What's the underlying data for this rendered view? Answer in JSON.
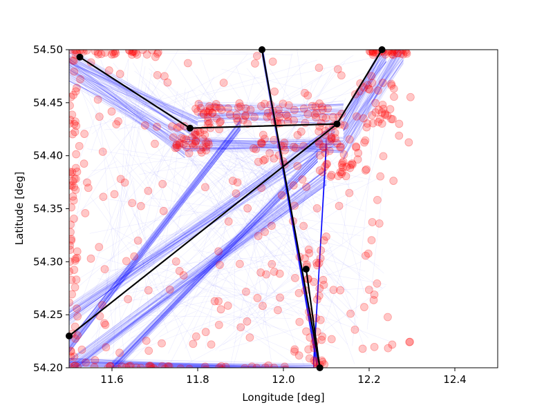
{
  "chart_data": {
    "type": "scatter",
    "title": "",
    "xlabel": "Longitude [deg]",
    "ylabel": "Latitude [deg]",
    "xlim": [
      11.5,
      12.5
    ],
    "ylim": [
      54.2,
      54.5
    ],
    "xticks": [
      "11.6",
      "11.8",
      "12.0",
      "12.2",
      "12.4"
    ],
    "xtick_values": [
      11.6,
      11.8,
      12.0,
      12.2,
      12.4
    ],
    "yticks": [
      "54.20",
      "54.25",
      "54.30",
      "54.35",
      "54.40",
      "54.45",
      "54.50"
    ],
    "ytick_values": [
      54.2,
      54.25,
      54.3,
      54.35,
      54.4,
      54.45,
      54.5
    ],
    "grid": false,
    "legend": "none",
    "colors": {
      "tracks": "#0000ff",
      "points": "#ff0000",
      "route": "#000000"
    },
    "track_corridors": [
      {
        "from": [
          11.5,
          54.49
        ],
        "to": [
          11.8,
          54.425
        ],
        "width": 0.012
      },
      {
        "from": [
          11.5,
          54.48
        ],
        "to": [
          11.77,
          54.41
        ],
        "width": 0.012
      },
      {
        "from": [
          11.77,
          54.41
        ],
        "to": [
          12.14,
          54.41
        ],
        "width": 0.008
      },
      {
        "from": [
          11.8,
          54.44
        ],
        "to": [
          12.14,
          54.44
        ],
        "width": 0.012
      },
      {
        "from": [
          12.14,
          54.43
        ],
        "to": [
          12.24,
          54.5
        ],
        "width": 0.012
      },
      {
        "from": [
          12.14,
          54.41
        ],
        "to": [
          12.28,
          54.5
        ],
        "width": 0.014
      },
      {
        "from": [
          11.95,
          54.5
        ],
        "to": [
          12.08,
          54.2
        ],
        "width": 0.006
      },
      {
        "from": [
          12.1,
          54.41
        ],
        "to": [
          12.07,
          54.2
        ],
        "width": 0.008
      },
      {
        "from": [
          11.5,
          54.25
        ],
        "to": [
          12.12,
          54.42
        ],
        "width": 0.01
      },
      {
        "from": [
          11.5,
          54.2
        ],
        "to": [
          12.1,
          54.38
        ],
        "width": 0.008
      },
      {
        "from": [
          11.5,
          54.22
        ],
        "to": [
          11.9,
          54.43
        ],
        "width": 0.006
      },
      {
        "from": [
          11.6,
          54.2
        ],
        "to": [
          12.08,
          54.4
        ],
        "width": 0.006
      },
      {
        "from": [
          11.5,
          54.205
        ],
        "to": [
          12.08,
          54.2
        ],
        "width": 0.004
      }
    ],
    "point_clusters": [
      {
        "x": [
          11.5,
          11.52
        ],
        "y": [
          54.2,
          54.5
        ],
        "n": 60
      },
      {
        "x": [
          11.5,
          11.72
        ],
        "y": [
          54.495,
          54.5
        ],
        "n": 30
      },
      {
        "x": [
          12.2,
          12.29
        ],
        "y": [
          54.495,
          54.5
        ],
        "n": 30
      },
      {
        "x": [
          11.5,
          12.1
        ],
        "y": [
          54.198,
          54.202
        ],
        "n": 40
      },
      {
        "x": [
          11.74,
          11.83
        ],
        "y": [
          54.4,
          54.43
        ],
        "n": 40
      },
      {
        "x": [
          11.8,
          12.12
        ],
        "y": [
          54.43,
          54.45
        ],
        "n": 70
      },
      {
        "x": [
          12.08,
          12.2
        ],
        "y": [
          54.38,
          54.43
        ],
        "n": 50
      },
      {
        "x": [
          12.17,
          12.26
        ],
        "y": [
          54.43,
          54.47
        ],
        "n": 30
      },
      {
        "x": [
          11.93,
          12.05
        ],
        "y": [
          54.39,
          54.42
        ],
        "n": 25
      },
      {
        "x": [
          12.02,
          12.1
        ],
        "y": [
          54.2,
          54.32
        ],
        "n": 40
      },
      {
        "x": [
          11.5,
          12.3
        ],
        "y": [
          54.2,
          54.5
        ],
        "n": 180
      }
    ],
    "route": {
      "segments": [
        [
          [
            11.525,
            54.493
          ],
          [
            11.782,
            54.426
          ],
          [
            12.125,
            54.43
          ],
          [
            12.23,
            54.5
          ]
        ],
        [
          [
            11.95,
            54.5
          ],
          [
            12.085,
            54.2
          ]
        ],
        [
          [
            12.053,
            54.293
          ],
          [
            12.085,
            54.2
          ]
        ],
        [
          [
            11.5,
            54.23
          ],
          [
            12.125,
            54.43
          ]
        ]
      ],
      "markers": [
        [
          11.525,
          54.493
        ],
        [
          11.782,
          54.426
        ],
        [
          12.125,
          54.43
        ],
        [
          12.23,
          54.5
        ],
        [
          11.95,
          54.5
        ],
        [
          12.053,
          54.293
        ],
        [
          11.5,
          54.23
        ],
        [
          12.085,
          54.2
        ]
      ]
    }
  }
}
